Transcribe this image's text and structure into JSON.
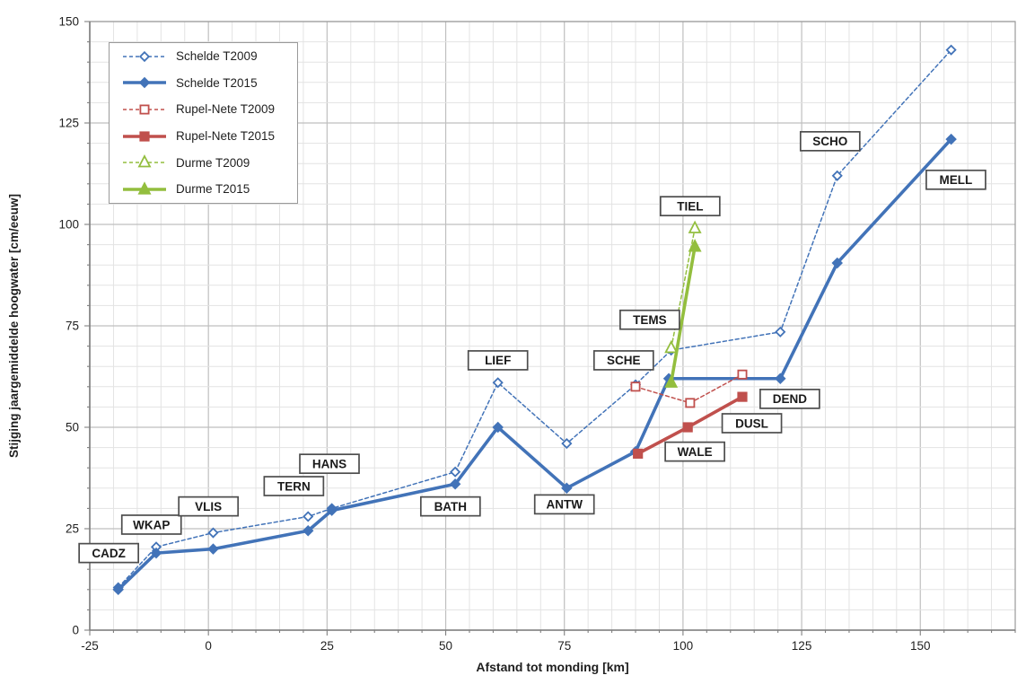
{
  "chart_data": {
    "type": "line",
    "title": "",
    "xlabel": "Afstand tot monding [km]",
    "ylabel": "Stijging jaargemiddelde hoogwater [cm/eeuw]",
    "xlim": [
      -25,
      170
    ],
    "ylim": [
      0,
      150
    ],
    "x_major_ticks": [
      -25,
      0,
      25,
      50,
      75,
      100,
      125,
      150
    ],
    "y_major_ticks": [
      0,
      25,
      50,
      75,
      100,
      125,
      150
    ],
    "minor_step": 5,
    "grid": "major+minor",
    "legend_position": "top-left-inside",
    "colors": {
      "schelde": "#4273B8",
      "rupel_nete": "#C0504D",
      "durme": "#93BE3E",
      "grid_minor": "#e3e3e3",
      "grid_major": "#bfbfbf",
      "plot_border": "#9a9a9a",
      "axis_line": "#808080",
      "text": "#1f1f1f"
    },
    "series": [
      {
        "name": "Schelde T2009",
        "color": "#4273B8",
        "style": "dashed",
        "marker": "diamond-open",
        "points": [
          [
            -19,
            10.5
          ],
          [
            -11,
            20.5
          ],
          [
            1,
            24
          ],
          [
            21,
            28
          ],
          [
            26,
            30
          ],
          [
            52,
            39
          ],
          [
            61,
            61
          ],
          [
            75.5,
            46
          ],
          [
            90,
            60.5
          ],
          [
            97.5,
            69
          ],
          [
            120.5,
            73.5
          ],
          [
            132.5,
            112
          ],
          [
            156.5,
            143
          ]
        ]
      },
      {
        "name": "Schelde T2015",
        "color": "#4273B8",
        "style": "solid-thick",
        "marker": "diamond-filled",
        "points": [
          [
            -19,
            10
          ],
          [
            -11,
            19
          ],
          [
            1,
            20
          ],
          [
            21,
            24.5
          ],
          [
            26,
            29.5
          ],
          [
            52,
            36
          ],
          [
            61,
            50
          ],
          [
            75.5,
            35
          ],
          [
            90,
            44
          ],
          [
            97,
            62
          ],
          [
            120.5,
            62
          ],
          [
            132.5,
            90.5
          ],
          [
            156.5,
            121
          ]
        ]
      },
      {
        "name": "Rupel-Nete T2009",
        "color": "#C0504D",
        "style": "dashed",
        "marker": "square-open",
        "points": [
          [
            90,
            60
          ],
          [
            101.5,
            56
          ],
          [
            112.5,
            63
          ]
        ]
      },
      {
        "name": "Rupel-Nete T2015",
        "color": "#C0504D",
        "style": "solid-thick",
        "marker": "square-filled",
        "points": [
          [
            90.5,
            43.5
          ],
          [
            101,
            50
          ],
          [
            112.5,
            57.5
          ]
        ]
      },
      {
        "name": "Durme T2009",
        "color": "#93BE3E",
        "style": "dashed",
        "marker": "triangle-open",
        "points": [
          [
            97.5,
            69.5
          ],
          [
            102.5,
            99
          ]
        ]
      },
      {
        "name": "Durme T2015",
        "color": "#93BE3E",
        "style": "solid-thick",
        "marker": "triangle-filled",
        "points": [
          [
            97.5,
            61
          ],
          [
            102.5,
            94.5
          ]
        ]
      }
    ],
    "station_labels": [
      {
        "text": "CADZ",
        "x": -21,
        "y": 19
      },
      {
        "text": "WKAP",
        "x": -12,
        "y": 26
      },
      {
        "text": "VLIS",
        "x": 0,
        "y": 30.5
      },
      {
        "text": "TERN",
        "x": 18,
        "y": 35.5
      },
      {
        "text": "HANS",
        "x": 25.5,
        "y": 41
      },
      {
        "text": "BATH",
        "x": 51,
        "y": 30.5
      },
      {
        "text": "LIEF",
        "x": 61,
        "y": 66.5
      },
      {
        "text": "ANTW",
        "x": 75,
        "y": 31
      },
      {
        "text": "SCHE",
        "x": 87.5,
        "y": 66.5
      },
      {
        "text": "TEMS",
        "x": 93,
        "y": 76.5
      },
      {
        "text": "TIEL",
        "x": 101.5,
        "y": 104.5
      },
      {
        "text": "WALE",
        "x": 102.5,
        "y": 44
      },
      {
        "text": "DUSL",
        "x": 114.5,
        "y": 51
      },
      {
        "text": "DEND",
        "x": 122.5,
        "y": 57
      },
      {
        "text": "SCHO",
        "x": 131,
        "y": 120.5
      },
      {
        "text": "MELL",
        "x": 157.5,
        "y": 111
      }
    ]
  }
}
